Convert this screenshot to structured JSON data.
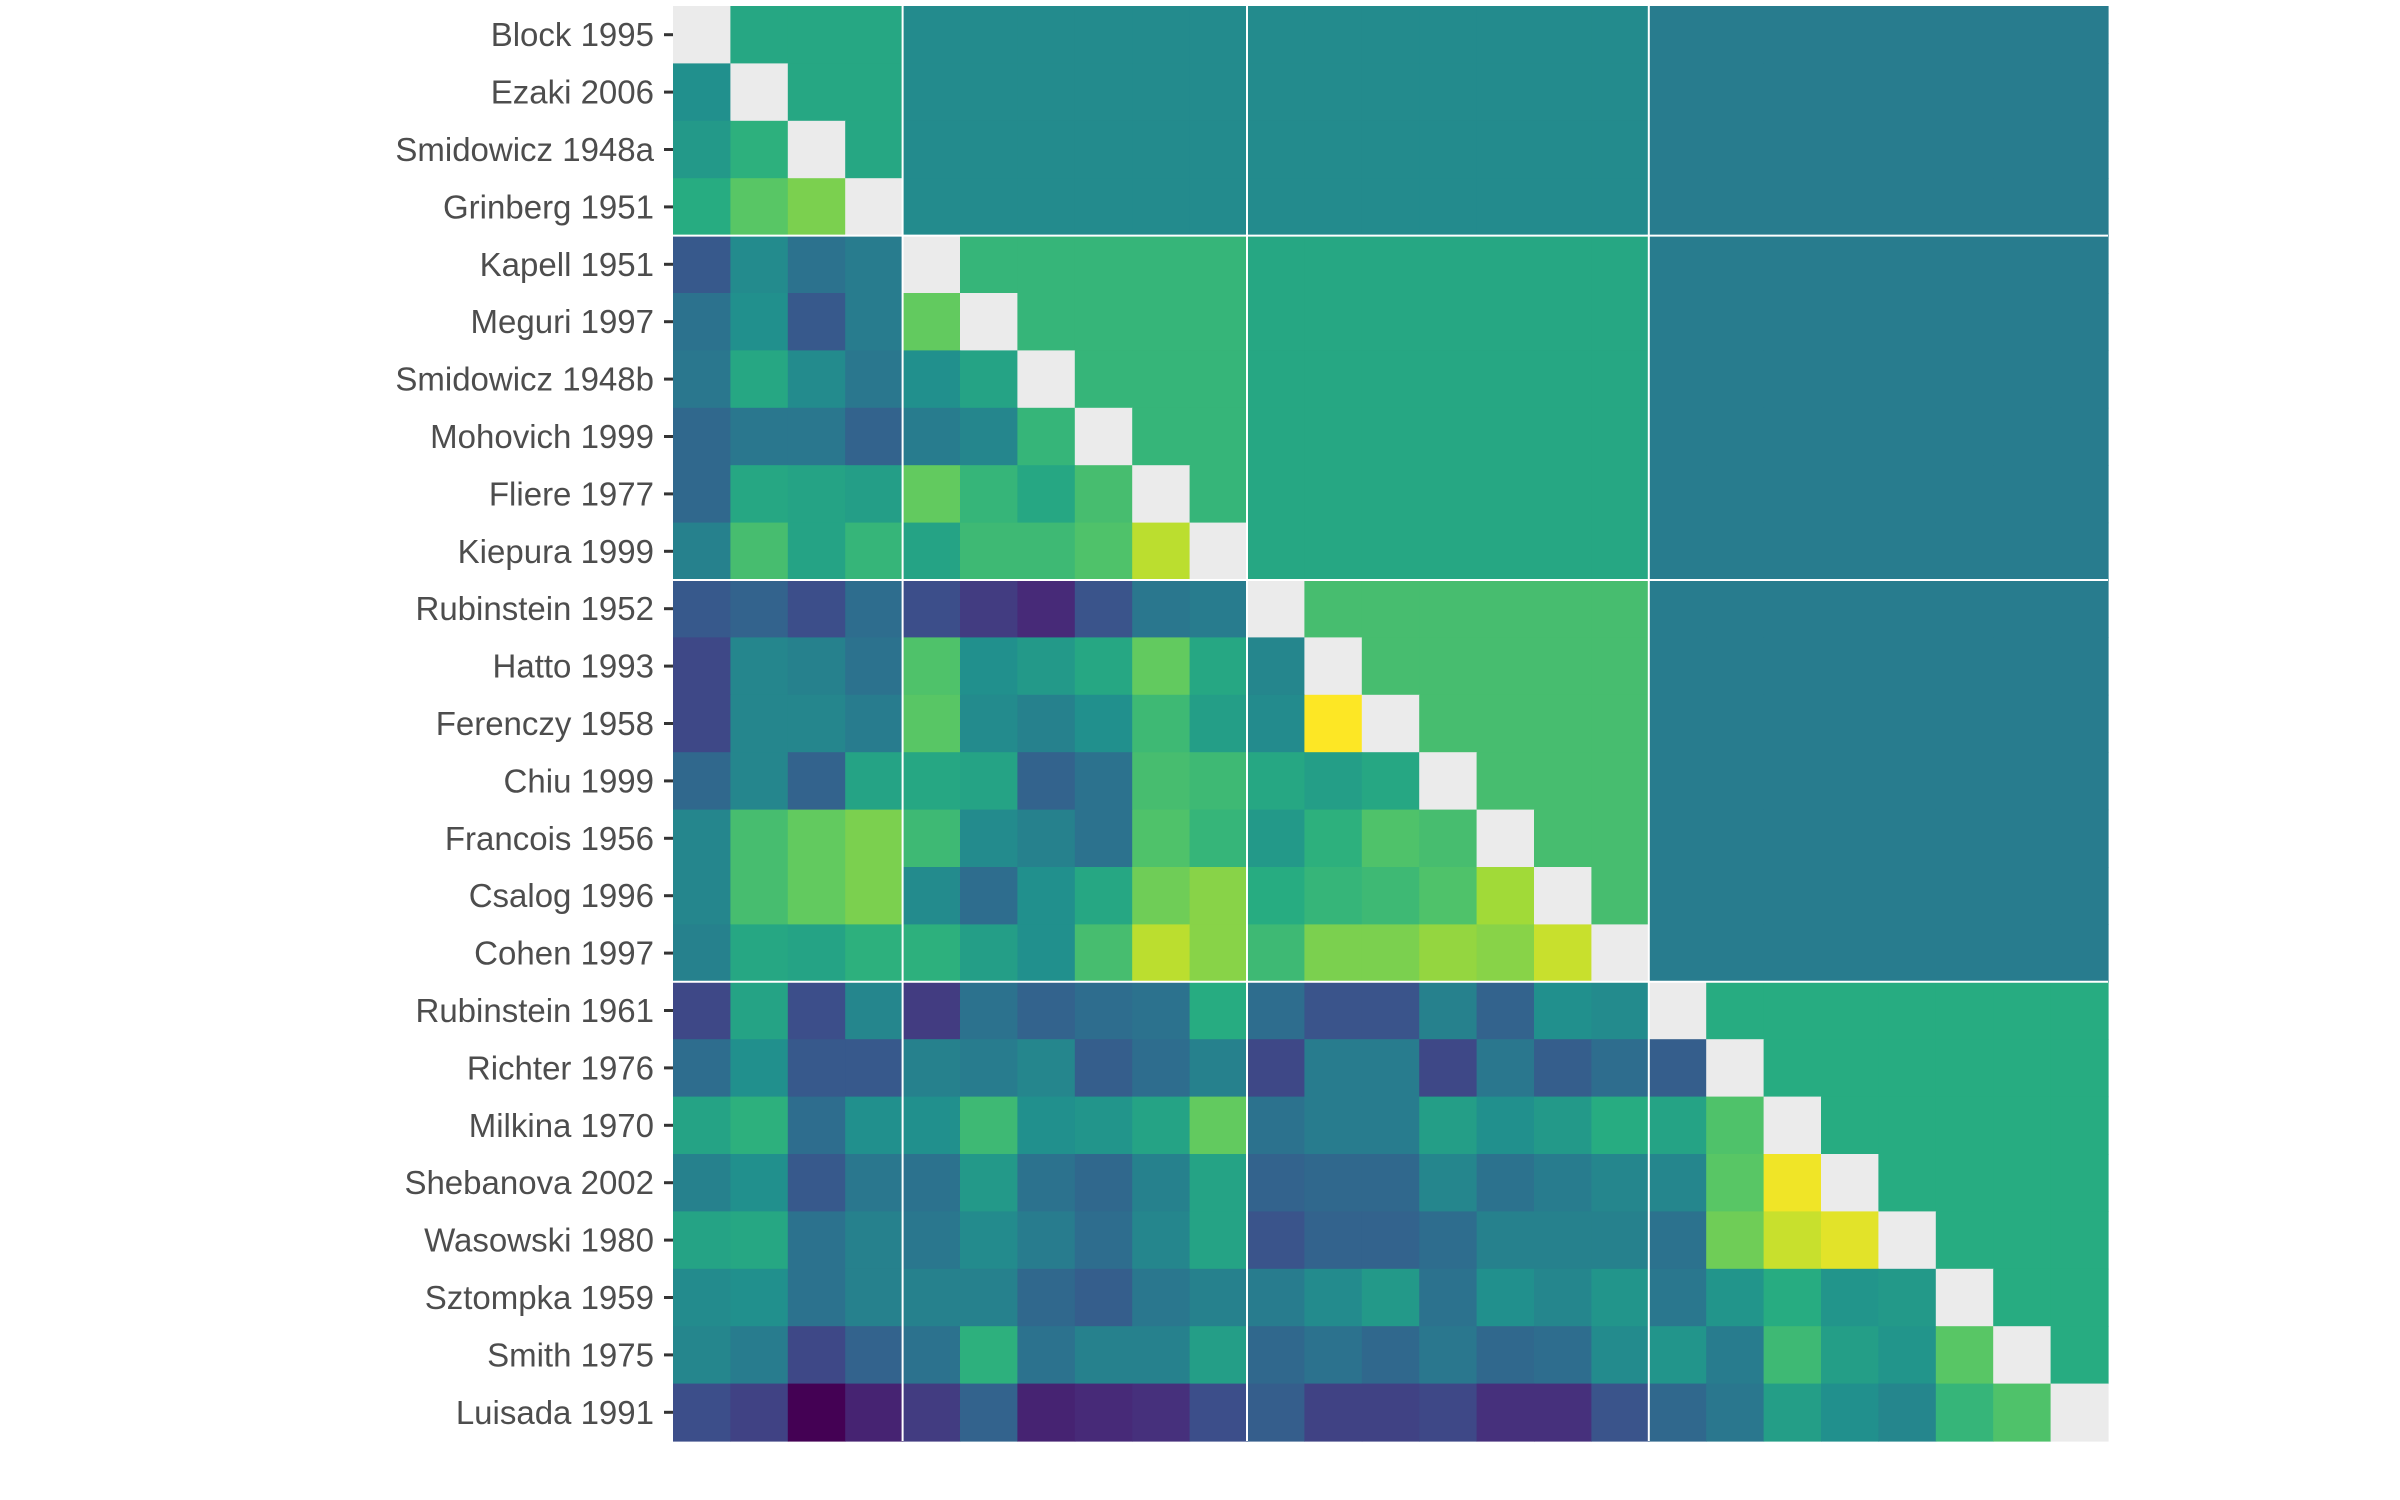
{
  "chart_data": {
    "type": "heatmap",
    "title": "",
    "xlabel": "",
    "ylabel": "",
    "rows": [
      "Block 1995",
      "Ezaki 2006",
      "Smidowicz 1948a",
      "Grinberg 1951",
      "Kapell 1951",
      "Meguri 1997",
      "Smidowicz 1948b",
      "Mohovich 1999",
      "Fliere 1977",
      "Kiepura 1999",
      "Rubinstein 1952",
      "Hatto 1993",
      "Ferenczy 1958",
      "Chiu 1999",
      "Francois 1956",
      "Csalog 1996",
      "Cohen 1997",
      "Rubinstein 1961",
      "Richter 1976",
      "Milkina 1970",
      "Shebanova 2002",
      "Wasowski 1980",
      "Sztompka 1959",
      "Smith 1975",
      "Luisada 1991"
    ],
    "cluster_sizes": [
      4,
      6,
      7,
      8
    ],
    "diagonal_color": "#ebebeb",
    "separator_color": "#ffffff",
    "colorscale": "viridis",
    "value_range": [
      0,
      1
    ],
    "upper_cluster_values": [
      [
        0.6,
        0.48,
        0.48,
        0.42
      ],
      [
        0.48,
        0.66,
        0.6,
        0.42
      ],
      [
        0.48,
        0.6,
        0.7,
        0.42
      ],
      [
        0.42,
        0.42,
        0.42,
        0.62
      ]
    ],
    "lower_values": [
      [
        0.5
      ],
      [
        0.54,
        0.64
      ],
      [
        0.62,
        0.74,
        0.8
      ],
      [
        0.28,
        0.48,
        0.38,
        0.42
      ],
      [
        0.38,
        0.5,
        0.28,
        0.42,
        0.76
      ],
      [
        0.4,
        0.6,
        0.48,
        0.4,
        0.5,
        0.58
      ],
      [
        0.34,
        0.4,
        0.4,
        0.32,
        0.42,
        0.46,
        0.66
      ],
      [
        0.34,
        0.6,
        0.58,
        0.56,
        0.76,
        0.66,
        0.6,
        0.7
      ],
      [
        0.44,
        0.7,
        0.58,
        0.66,
        0.58,
        0.68,
        0.68,
        0.72,
        0.9
      ],
      [
        0.28,
        0.32,
        0.24,
        0.36,
        0.24,
        0.18,
        0.12,
        0.26,
        0.4,
        0.42
      ],
      [
        0.22,
        0.46,
        0.44,
        0.38,
        0.72,
        0.5,
        0.54,
        0.6,
        0.76,
        0.6,
        0.46
      ],
      [
        0.22,
        0.46,
        0.46,
        0.42,
        0.74,
        0.48,
        0.44,
        0.5,
        0.68,
        0.56,
        0.48,
        1.0
      ],
      [
        0.34,
        0.46,
        0.32,
        0.58,
        0.6,
        0.58,
        0.32,
        0.38,
        0.7,
        0.68,
        0.6,
        0.56,
        0.6
      ],
      [
        0.46,
        0.7,
        0.76,
        0.8,
        0.68,
        0.48,
        0.44,
        0.38,
        0.72,
        0.66,
        0.54,
        0.64,
        0.72,
        0.7
      ],
      [
        0.46,
        0.7,
        0.76,
        0.8,
        0.48,
        0.36,
        0.5,
        0.6,
        0.78,
        0.82,
        0.62,
        0.66,
        0.68,
        0.72,
        0.86
      ],
      [
        0.44,
        0.6,
        0.58,
        0.64,
        0.64,
        0.56,
        0.5,
        0.7,
        0.9,
        0.82,
        0.68,
        0.8,
        0.8,
        0.84,
        0.82,
        0.92
      ],
      [
        0.22,
        0.58,
        0.24,
        0.46,
        0.18,
        0.38,
        0.32,
        0.36,
        0.38,
        0.62,
        0.36,
        0.26,
        0.26,
        0.44,
        0.32,
        0.5,
        0.48
      ],
      [
        0.36,
        0.5,
        0.28,
        0.28,
        0.44,
        0.42,
        0.46,
        0.3,
        0.36,
        0.44,
        0.22,
        0.42,
        0.42,
        0.22,
        0.4,
        0.3,
        0.36,
        0.3
      ],
      [
        0.58,
        0.64,
        0.36,
        0.5,
        0.5,
        0.68,
        0.5,
        0.52,
        0.58,
        0.76,
        0.38,
        0.42,
        0.42,
        0.56,
        0.5,
        0.54,
        0.62,
        0.58,
        0.72
      ],
      [
        0.44,
        0.5,
        0.28,
        0.4,
        0.38,
        0.54,
        0.38,
        0.34,
        0.44,
        0.58,
        0.32,
        0.34,
        0.34,
        0.46,
        0.38,
        0.42,
        0.46,
        0.46,
        0.74,
        0.98
      ],
      [
        0.58,
        0.6,
        0.38,
        0.44,
        0.4,
        0.48,
        0.42,
        0.36,
        0.46,
        0.58,
        0.26,
        0.32,
        0.32,
        0.36,
        0.44,
        0.44,
        0.44,
        0.38,
        0.78,
        0.92,
        0.96
      ],
      [
        0.48,
        0.5,
        0.38,
        0.44,
        0.44,
        0.44,
        0.34,
        0.3,
        0.4,
        0.44,
        0.42,
        0.48,
        0.54,
        0.38,
        0.5,
        0.46,
        0.52,
        0.4,
        0.52,
        0.62,
        0.52,
        0.54
      ],
      [
        0.46,
        0.42,
        0.22,
        0.32,
        0.38,
        0.64,
        0.38,
        0.44,
        0.44,
        0.56,
        0.34,
        0.38,
        0.34,
        0.4,
        0.34,
        0.36,
        0.48,
        0.52,
        0.42,
        0.68,
        0.56,
        0.52,
        0.74
      ],
      [
        0.24,
        0.2,
        0.0,
        0.1,
        0.18,
        0.32,
        0.1,
        0.12,
        0.14,
        0.24,
        0.3,
        0.2,
        0.2,
        0.22,
        0.14,
        0.14,
        0.26,
        0.34,
        0.4,
        0.56,
        0.5,
        0.46,
        0.66,
        0.72
      ]
    ]
  }
}
